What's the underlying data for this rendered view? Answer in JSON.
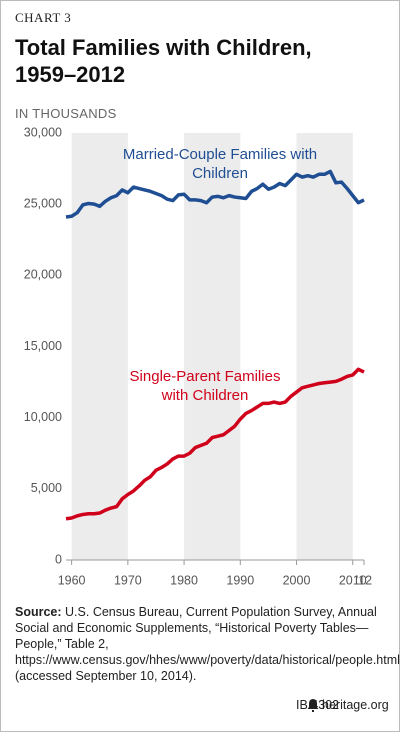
{
  "chart_data": {
    "type": "line",
    "chart_number": "CHART 3",
    "title": "Total Families with Children, 1959–2012",
    "subtitle": "IN THOUSANDS",
    "x": [
      1959,
      1960,
      1961,
      1962,
      1963,
      1964,
      1965,
      1966,
      1967,
      1968,
      1969,
      1970,
      1971,
      1972,
      1973,
      1974,
      1975,
      1976,
      1977,
      1978,
      1979,
      1980,
      1981,
      1982,
      1983,
      1984,
      1985,
      1986,
      1987,
      1988,
      1989,
      1990,
      1991,
      1992,
      1993,
      1994,
      1995,
      1996,
      1997,
      1998,
      1999,
      2000,
      2001,
      2002,
      2003,
      2004,
      2005,
      2006,
      2007,
      2008,
      2009,
      2010,
      2011,
      2012
    ],
    "series": [
      {
        "name": "Married-Couple Families with Children",
        "color": "#1f4e93",
        "values": [
          24100,
          24150,
          24400,
          24950,
          25050,
          25000,
          24850,
          25200,
          25450,
          25600,
          26000,
          25800,
          26200,
          26100,
          26000,
          25900,
          25750,
          25600,
          25350,
          25250,
          25650,
          25700,
          25300,
          25300,
          25250,
          25100,
          25500,
          25550,
          25450,
          25600,
          25500,
          25450,
          25400,
          25900,
          26100,
          26400,
          26050,
          26200,
          26450,
          26300,
          26700,
          27100,
          26900,
          27000,
          26900,
          27100,
          27100,
          27300,
          26500,
          26550,
          26100,
          25600,
          25100,
          25300
        ]
      },
      {
        "name": "Single-Parent Families with Children",
        "color": "#d0021b",
        "values": [
          2900,
          2950,
          3100,
          3200,
          3250,
          3250,
          3300,
          3500,
          3650,
          3750,
          4300,
          4600,
          4850,
          5200,
          5600,
          5850,
          6300,
          6500,
          6750,
          7100,
          7300,
          7300,
          7500,
          7900,
          8050,
          8200,
          8600,
          8700,
          8800,
          9100,
          9400,
          9900,
          10300,
          10500,
          10750,
          11000,
          11000,
          11100,
          11000,
          11100,
          11500,
          11800,
          12100,
          12200,
          12300,
          12400,
          12450,
          12500,
          12550,
          12700,
          12900,
          13000,
          13400,
          13200
        ]
      }
    ],
    "xlim": [
      1959,
      2012
    ],
    "xticks": [
      1960,
      1970,
      1980,
      1990,
      2000,
      2010,
      {
        "value": 2012,
        "label": "'12"
      }
    ],
    "ylim": [
      0,
      30000
    ],
    "yticks": [
      0,
      {
        "value": 5000,
        "label": "5,000"
      },
      {
        "value": 10000,
        "label": "10,000"
      },
      {
        "value": 15000,
        "label": "15,000"
      },
      {
        "value": 20000,
        "label": "20,000"
      },
      {
        "value": 25000,
        "label": "25,000"
      },
      {
        "value": 30000,
        "label": "30,000"
      }
    ],
    "source_label": "Source:",
    "source": "U.S. Census Bureau, Current Population Survey, Annual Social and Economic Supplements, “Historical Poverty Tables—People,” Table 2, https://www.census.gov/hhes/www/poverty/data/historical/people.html (accessed September 10, 2014).",
    "footer_id": "IB 4302",
    "footer_site": "heritage.org"
  }
}
